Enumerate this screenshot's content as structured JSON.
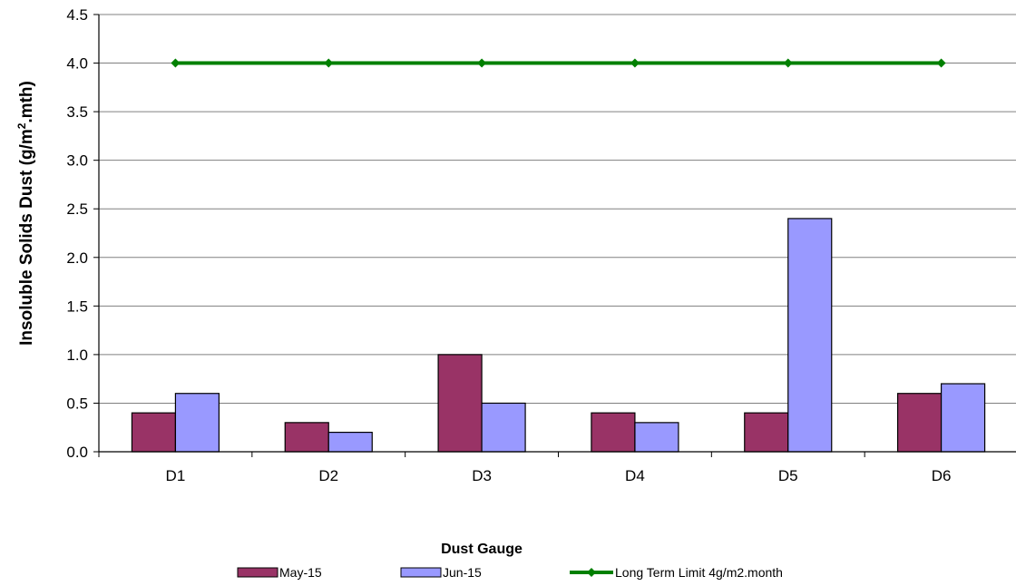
{
  "chart_data": {
    "type": "bar",
    "categories": [
      "D1",
      "D2",
      "D3",
      "D4",
      "D5",
      "D6"
    ],
    "series": [
      {
        "name": "May-15",
        "kind": "bar",
        "color": "#993366",
        "values": [
          0.4,
          0.3,
          1.0,
          0.4,
          0.4,
          0.6
        ]
      },
      {
        "name": "Jun-15",
        "kind": "bar",
        "color": "#9999ff",
        "values": [
          0.6,
          0.2,
          0.5,
          0.3,
          2.4,
          0.7
        ]
      },
      {
        "name": "Long Term Limit 4g/m2.month",
        "kind": "line",
        "color": "#008000",
        "values": [
          4.0,
          4.0,
          4.0,
          4.0,
          4.0,
          4.0
        ]
      }
    ],
    "xlabel": "Dust Gauge",
    "ylabel_parts": [
      "Insoluble Solids Dust (g/m",
      "2",
      ".mth)"
    ],
    "ylim": [
      0,
      4.5
    ],
    "yticks": [
      "0.0",
      "0.5",
      "1.0",
      "1.5",
      "2.0",
      "2.5",
      "3.0",
      "3.5",
      "4.0",
      "4.5"
    ],
    "ytick_values": [
      0,
      0.5,
      1.0,
      1.5,
      2.0,
      2.5,
      3.0,
      3.5,
      4.0,
      4.5
    ],
    "grid": true,
    "legend_position": "bottom"
  }
}
